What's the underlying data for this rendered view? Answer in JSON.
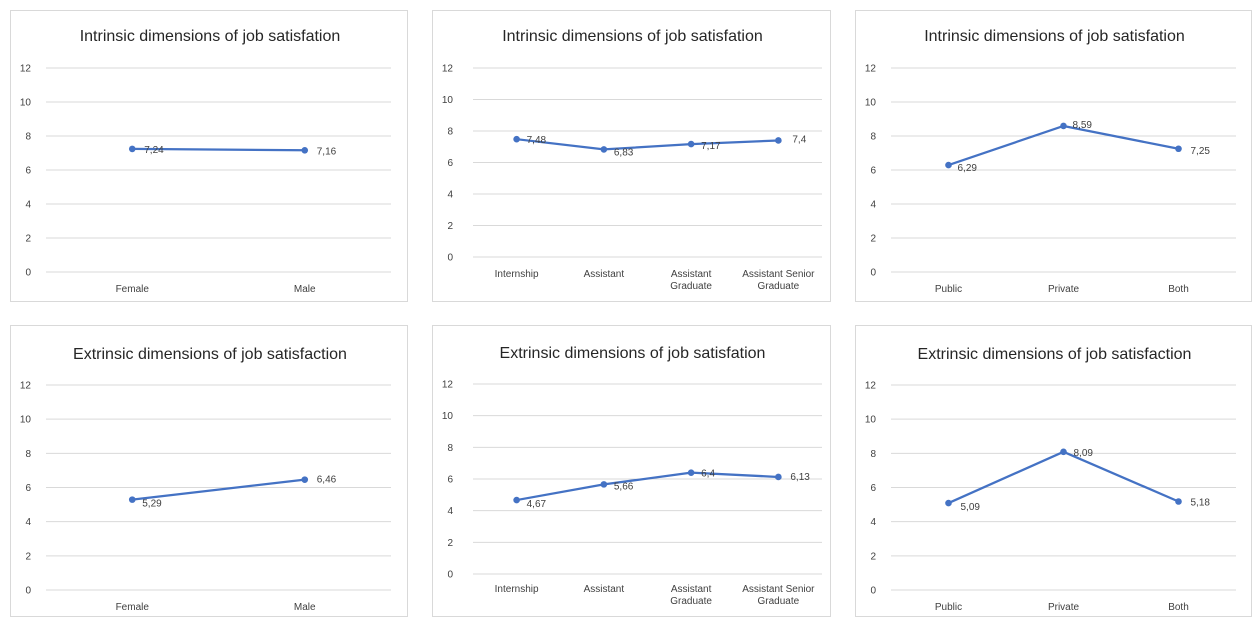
{
  "colors": {
    "series": "#4472c4",
    "grid": "#d9d9d9",
    "text": "#404040",
    "border": "#d9d9d9"
  },
  "chart_data": [
    {
      "type": "line",
      "title": "Intrinsic dimensions  of job satisfation",
      "categories": [
        [
          "Female"
        ],
        [
          "Male"
        ]
      ],
      "values": [
        7.24,
        7.16
      ],
      "labels": [
        "7,24",
        "7,16"
      ],
      "ylim": [
        0,
        12
      ],
      "yticks": [
        "0",
        "2",
        "4",
        "6",
        "8",
        "10",
        "12"
      ],
      "grid": true,
      "legend": "none"
    },
    {
      "type": "line",
      "title": "Intrinsic dimensions  of job satisfation",
      "categories": [
        [
          "Internship"
        ],
        [
          "Assistant"
        ],
        [
          "Assistant",
          "Graduate"
        ],
        [
          "Assistant Senior",
          "Graduate"
        ]
      ],
      "values": [
        7.48,
        6.83,
        7.17,
        7.4
      ],
      "labels": [
        "7,48",
        "6,83",
        "7,17",
        "7,4"
      ],
      "ylim": [
        0,
        12
      ],
      "yticks": [
        "0",
        "2",
        "4",
        "6",
        "8",
        "10",
        "12"
      ],
      "grid": true,
      "legend": "none"
    },
    {
      "type": "line",
      "title": "Intrinsic dimensions  of job satisfation",
      "categories": [
        [
          "Public"
        ],
        [
          "Private"
        ],
        [
          "Both"
        ]
      ],
      "values": [
        6.29,
        8.59,
        7.25
      ],
      "labels": [
        "6,29",
        "8,59",
        "7,25"
      ],
      "ylim": [
        0,
        12
      ],
      "yticks": [
        "0",
        "2",
        "4",
        "6",
        "8",
        "10",
        "12"
      ],
      "grid": true,
      "legend": "none"
    },
    {
      "type": "line",
      "title": "Extrinsic dimensions of job satisfaction",
      "categories": [
        [
          "Female"
        ],
        [
          "Male"
        ]
      ],
      "values": [
        5.29,
        6.46
      ],
      "labels": [
        "5,29",
        "6,46"
      ],
      "ylim": [
        0,
        12
      ],
      "yticks": [
        "0",
        "2",
        "4",
        "6",
        "8",
        "10",
        "12"
      ],
      "grid": true,
      "legend": "none"
    },
    {
      "type": "line",
      "title": "Extrinsic dimensions of job satisfation",
      "categories": [
        [
          "Internship"
        ],
        [
          "Assistant"
        ],
        [
          "Assistant",
          "Graduate"
        ],
        [
          "Assistant Senior",
          "Graduate"
        ]
      ],
      "values": [
        4.67,
        5.66,
        6.4,
        6.13
      ],
      "labels": [
        "4,67",
        "5,66",
        "6,4",
        "6,13"
      ],
      "ylim": [
        0,
        12
      ],
      "yticks": [
        "0",
        "2",
        "4",
        "6",
        "8",
        "10",
        "12"
      ],
      "grid": true,
      "legend": "none"
    },
    {
      "type": "line",
      "title": "Extrinsic dimensions of job satisfaction",
      "categories": [
        [
          "Public"
        ],
        [
          "Private"
        ],
        [
          "Both"
        ]
      ],
      "values": [
        5.09,
        8.09,
        5.18
      ],
      "labels": [
        "5,09",
        "8,09",
        "5,18"
      ],
      "ylim": [
        0,
        12
      ],
      "yticks": [
        "0",
        "2",
        "4",
        "6",
        "8",
        "10",
        "12"
      ],
      "grid": true,
      "legend": "none"
    }
  ]
}
